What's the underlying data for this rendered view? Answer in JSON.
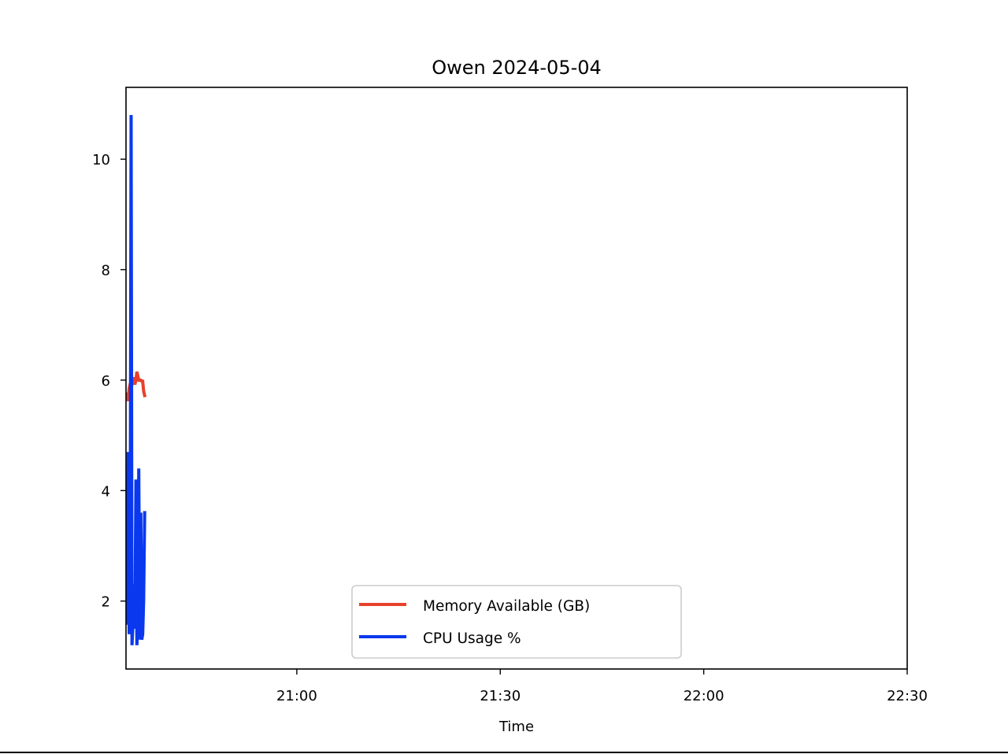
{
  "chart_data": {
    "type": "line",
    "title": "Owen 2024-05-04",
    "xlabel": "Time",
    "ylabel": "",
    "x_tick_labels": [
      "21:00",
      "21:30",
      "22:00",
      "22:30"
    ],
    "x_tick_values": [
      "21:00",
      "21:30",
      "22:00",
      "22:30"
    ],
    "xlim": [
      "20:34:49",
      "22:30"
    ],
    "y_ticks": [
      2,
      4,
      6,
      8,
      10
    ],
    "ylim": [
      0.77,
      11.3
    ],
    "grid": false,
    "legend_position": "lower center",
    "series": [
      {
        "name": "Memory Available (GB)",
        "color": "#e8402b",
        "x": [
          "20:35:00",
          "20:35:08",
          "20:35:17",
          "20:35:25",
          "20:35:34",
          "20:35:42",
          "20:35:51",
          "20:36:00",
          "20:36:08",
          "20:36:17",
          "20:36:25",
          "20:36:42",
          "20:37:00",
          "20:37:08",
          "20:37:17",
          "20:37:25",
          "20:37:34"
        ],
        "values": [
          5.75,
          5.62,
          5.85,
          5.92,
          6.0,
          6.02,
          5.98,
          6.05,
          5.92,
          6.0,
          6.15,
          6.0,
          6.0,
          5.98,
          5.98,
          5.8,
          5.72
        ]
      },
      {
        "name": "CPU Usage %",
        "color": "#0938ee",
        "x": [
          "20:35:00",
          "20:35:08",
          "20:35:17",
          "20:35:25",
          "20:35:34",
          "20:35:42",
          "20:35:51",
          "20:36:00",
          "20:36:08",
          "20:36:17",
          "20:36:25",
          "20:36:34",
          "20:36:42",
          "20:36:51",
          "20:37:00",
          "20:37:08",
          "20:37:17",
          "20:37:25",
          "20:37:34"
        ],
        "values": [
          1.6,
          4.7,
          1.4,
          2.0,
          10.8,
          1.2,
          1.6,
          2.3,
          1.5,
          4.2,
          1.2,
          1.6,
          4.4,
          1.3,
          3.6,
          1.3,
          1.4,
          2.0,
          3.6
        ]
      }
    ]
  }
}
